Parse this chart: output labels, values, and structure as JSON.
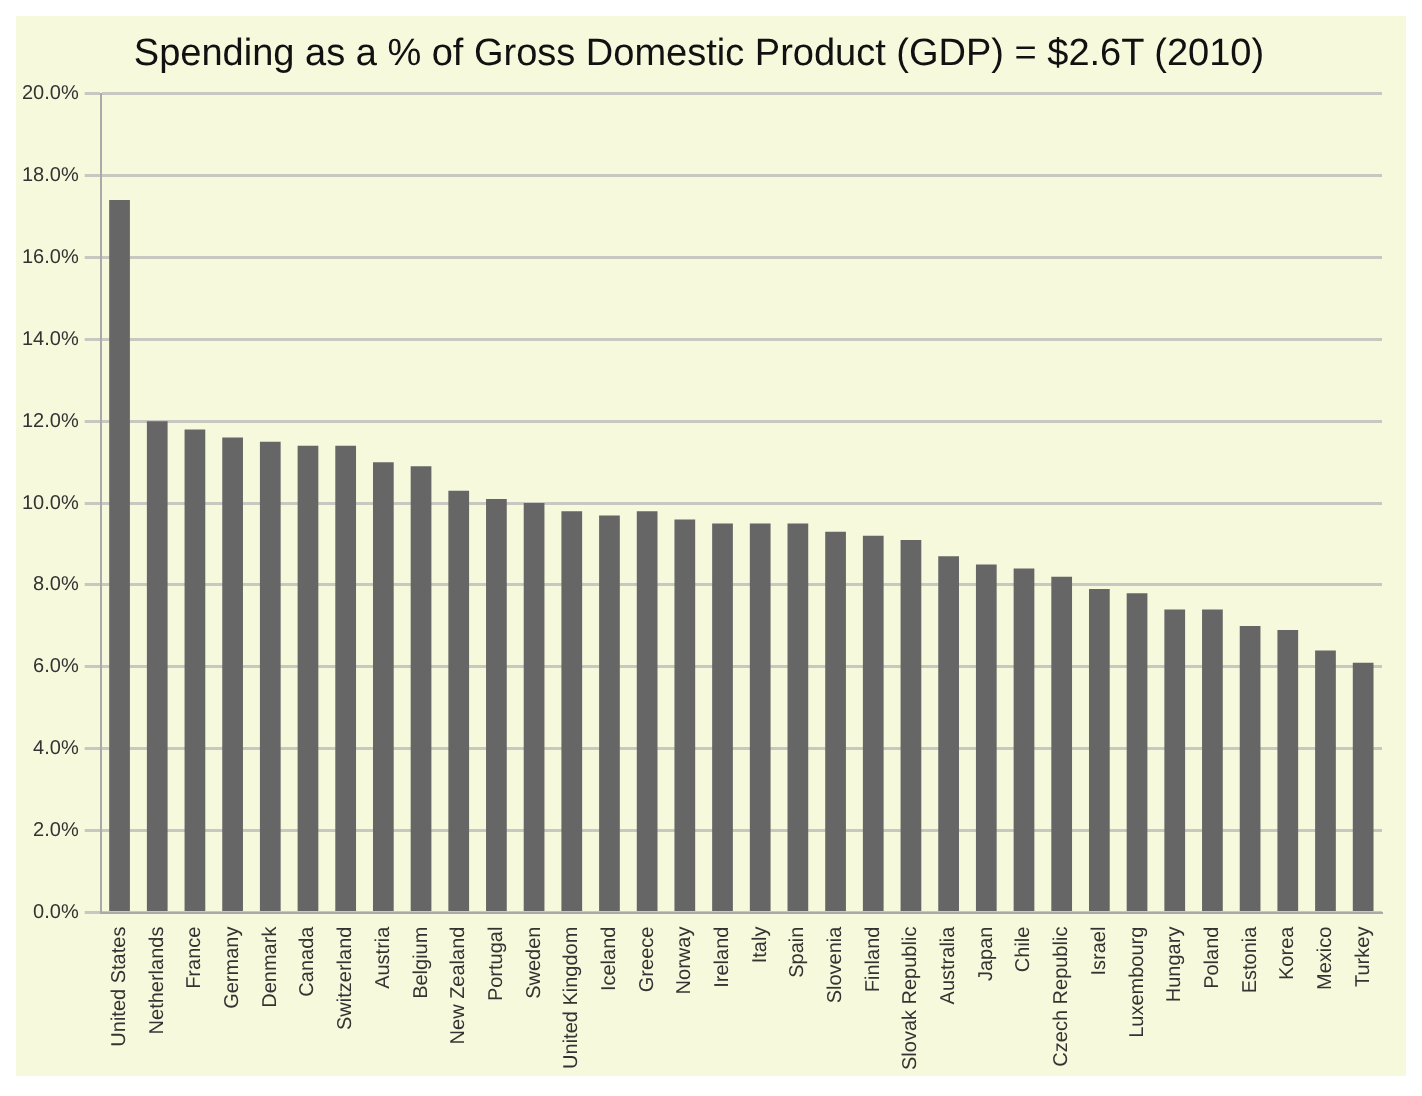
{
  "chart_data": {
    "type": "bar",
    "title": "Spending as a % of Gross Domestic Product (GDP) = $2.6T (2010)",
    "categories": [
      "United States",
      "Netherlands",
      "France",
      "Germany",
      "Denmark",
      "Canada",
      "Switzerland",
      "Austria",
      "Belgium",
      "New Zealand",
      "Portugal",
      "Sweden",
      "United Kingdom",
      "Iceland",
      "Greece",
      "Norway",
      "Ireland",
      "Italy",
      "Spain",
      "Slovenia",
      "Finland",
      "Slovak Republic",
      "Australia",
      "Japan",
      "Chile",
      "Czech Republic",
      "Israel",
      "Luxembourg",
      "Hungary",
      "Poland",
      "Estonia",
      "Korea",
      "Mexico",
      "Turkey"
    ],
    "values": [
      17.4,
      12.0,
      11.8,
      11.6,
      11.5,
      11.4,
      11.4,
      11.0,
      10.9,
      10.3,
      10.1,
      10.0,
      9.8,
      9.7,
      9.8,
      9.6,
      9.5,
      9.5,
      9.5,
      9.3,
      9.2,
      9.1,
      8.7,
      8.5,
      8.4,
      8.2,
      7.9,
      7.8,
      7.4,
      7.4,
      7.0,
      6.9,
      6.4,
      6.1
    ],
    "color": "#666666",
    "ylim": [
      0,
      20
    ],
    "yticks": [
      {
        "value": 0,
        "label": "0.0%"
      },
      {
        "value": 2,
        "label": "2.0%"
      },
      {
        "value": 4,
        "label": "4.0%"
      },
      {
        "value": 6,
        "label": "6.0%"
      },
      {
        "value": 8,
        "label": "8.0%"
      },
      {
        "value": 10,
        "label": "10.0%"
      },
      {
        "value": 12,
        "label": "12.0%"
      },
      {
        "value": 14,
        "label": "14.0%"
      },
      {
        "value": 16,
        "label": "16.0%"
      },
      {
        "value": 18,
        "label": "18.0%"
      },
      {
        "value": 20,
        "label": "20.0%"
      }
    ],
    "grid": "y"
  }
}
